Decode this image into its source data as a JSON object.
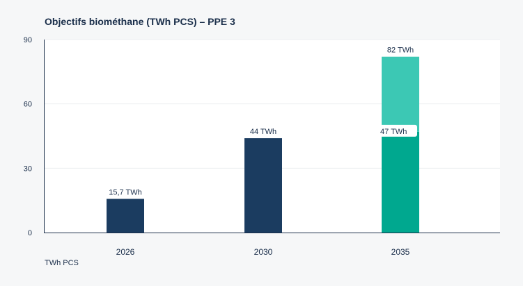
{
  "chart_data": {
    "type": "bar",
    "title": "Objectifs biométhane (TWh PCS) – PPE 3",
    "ylabel": "TWh PCS",
    "xlabel": "",
    "ylim": [
      0,
      90
    ],
    "yticks": [
      0,
      30,
      60,
      90
    ],
    "grid": true,
    "categories": [
      "2026",
      "2030",
      "2035"
    ],
    "bars": [
      {
        "category": "2026",
        "segments": [
          {
            "from": 0,
            "to": 15.7,
            "color": "#1b3c60",
            "label": "15,7 TWh"
          }
        ]
      },
      {
        "category": "2030",
        "segments": [
          {
            "from": 0,
            "to": 44,
            "color": "#1b3c60",
            "label": "44 TWh"
          }
        ]
      },
      {
        "category": "2035",
        "segments": [
          {
            "from": 0,
            "to": 47,
            "color": "#00a88f",
            "label": "47 TWh"
          },
          {
            "from": 47,
            "to": 82,
            "color": "#3cc8b4",
            "label": "82 TWh"
          }
        ]
      }
    ]
  }
}
